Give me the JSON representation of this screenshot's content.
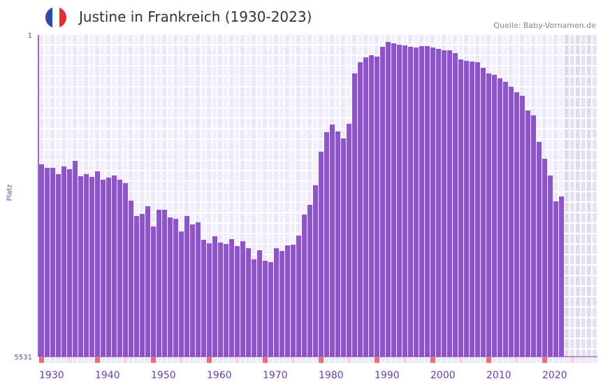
{
  "title": "Justine in Frankreich (1930-2023)",
  "source": "Quelle: Baby-Vornamen.de",
  "flag_colors": [
    "#2a4ea3",
    "#ffffff",
    "#ec2a35"
  ],
  "chart_data": {
    "type": "bar",
    "title": "Justine in Frankreich (1930-2023)",
    "xlabel": "",
    "ylabel": "Platz",
    "y_axis_inverted": true,
    "ylim": [
      1,
      5531
    ],
    "ytick_labels": [
      "1",
      "5531"
    ],
    "xtick_labels": [
      "1930",
      "1940",
      "1950",
      "1960",
      "1970",
      "1980",
      "1990",
      "2000",
      "2010",
      "2020"
    ],
    "x_range": [
      1930,
      2029
    ],
    "bar_color": "#8c55c6",
    "grid": true,
    "years_start": 1930,
    "values": [
      2225,
      2285,
      2285,
      2393,
      2261,
      2309,
      2165,
      2429,
      2393,
      2441,
      2345,
      2489,
      2453,
      2417,
      2489,
      2549,
      2850,
      3114,
      3078,
      2946,
      3294,
      3006,
      3006,
      3138,
      3162,
      3379,
      3114,
      3258,
      3222,
      3523,
      3583,
      3463,
      3571,
      3595,
      3511,
      3631,
      3547,
      3667,
      3859,
      3703,
      3883,
      3907,
      3667,
      3715,
      3619,
      3607,
      3451,
      3090,
      2922,
      2585,
      2008,
      1672,
      1540,
      1660,
      1780,
      1528,
      662,
      470,
      386,
      350,
      374,
      205,
      121,
      145,
      169,
      181,
      205,
      217,
      193,
      193,
      217,
      241,
      265,
      265,
      314,
      422,
      446,
      458,
      470,
      566,
      662,
      686,
      746,
      806,
      890,
      987,
      1047,
      1299,
      1383,
      1840,
      2129,
      2417,
      2862,
      2778
    ]
  }
}
